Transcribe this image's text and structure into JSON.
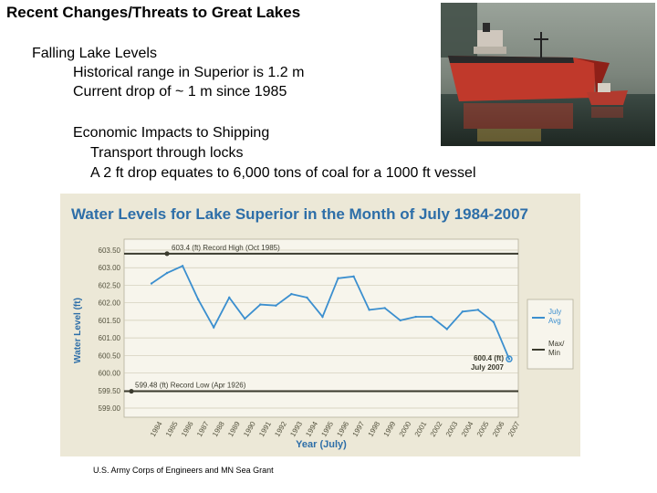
{
  "slide": {
    "title": "Recent Changes/Threats to Great Lakes",
    "bullets": [
      "Falling Lake Levels",
      "Historical range in Superior is 1.2 m",
      "Current drop of ~ 1 m since 1985",
      "Economic Impacts to Shipping",
      "Transport through locks",
      "A 2 ft drop equates to 6,000 tons of coal for a 1000 ft vessel"
    ],
    "source": "U.S. Army Corps of Engineers and MN Sea Grant",
    "photo_icon": "cargo-ship-photo"
  },
  "chart_data": {
    "type": "line",
    "title": "Water Levels for Lake Superior in the Month of July 1984-2007",
    "xlabel": "Year (July)",
    "ylabel": "Water Level (ft)",
    "ylim": [
      599.0,
      603.5
    ],
    "yticks": [
      "603.50",
      "603.00",
      "602.50",
      "602.00",
      "601.50",
      "601.00",
      "600.50",
      "600.00",
      "599.50",
      "599.00"
    ],
    "x": [
      1984,
      1985,
      1986,
      1987,
      1988,
      1989,
      1990,
      1991,
      1992,
      1993,
      1994,
      1995,
      1996,
      1997,
      1998,
      1999,
      2000,
      2001,
      2002,
      2003,
      2004,
      2005,
      2006,
      2007
    ],
    "series": [
      {
        "name": "July Avg",
        "color": "#3b8fcf",
        "values": [
          602.55,
          602.85,
          603.05,
          602.1,
          601.3,
          602.15,
          601.55,
          601.95,
          601.92,
          602.25,
          602.15,
          601.6,
          602.7,
          602.75,
          601.8,
          601.85,
          601.5,
          601.6,
          601.6,
          601.25,
          601.75,
          601.8,
          601.45,
          600.4
        ]
      },
      {
        "name": "Max/ Min",
        "color": "#3b3b2e"
      }
    ],
    "record_high": {
      "value": 603.4,
      "year": 1985,
      "label": "603.4 (ft) Record High (Oct 1985)"
    },
    "record_low": {
      "value": 599.48,
      "year": 1984,
      "label": "599.48 (ft) Record Low (Apr 1926)"
    },
    "end_annotation": {
      "value": 600.4,
      "year": 2007,
      "line1": "600.4 (ft)",
      "line2": "July 2007"
    },
    "legend_position": "right",
    "grid": true,
    "colors": {
      "panel": "#ece8d7",
      "plot": "#f7f5ec",
      "grid": "#cfcab5",
      "title": "#2d6ea8",
      "ref_line": "#3b3b2e"
    }
  }
}
